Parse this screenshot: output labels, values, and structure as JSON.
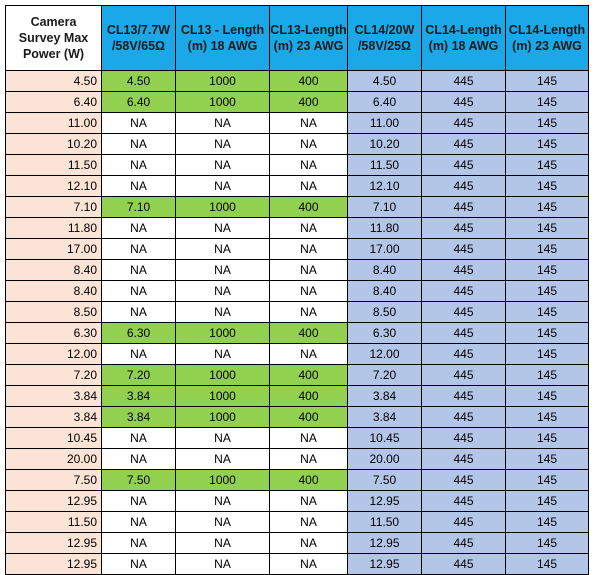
{
  "table": {
    "headers": [
      [
        "Camera",
        "Survey Max",
        "Power (W)"
      ],
      [
        "CL13/7.7W",
        "/58V/65Ω"
      ],
      [
        "CL13 - Length",
        "(m) 18 AWG"
      ],
      [
        "CL13-Length",
        "(m) 23 AWG"
      ],
      [
        "CL14/20W",
        "/58V/25Ω"
      ],
      [
        "CL14-Length",
        "(m) 18 AWG"
      ],
      [
        "CL14-Length",
        "(m) 23 AWG"
      ]
    ],
    "colors": {
      "header_blue": "#1aa8e8",
      "power_peach": "#fbe4d5",
      "highlight_green": "#92d050",
      "cl14_blue": "#b4c6e7"
    },
    "rows": [
      {
        "power": "4.50",
        "cl13": "4.50",
        "cl13_18": "1000",
        "cl13_23": "400",
        "green": true,
        "cl14": "4.50",
        "cl14_18": "445",
        "cl14_23": "145"
      },
      {
        "power": "6.40",
        "cl13": "6.40",
        "cl13_18": "1000",
        "cl13_23": "400",
        "green": true,
        "cl14": "6.40",
        "cl14_18": "445",
        "cl14_23": "145"
      },
      {
        "power": "11.00",
        "cl13": "NA",
        "cl13_18": "NA",
        "cl13_23": "NA",
        "green": false,
        "cl14": "11.00",
        "cl14_18": "445",
        "cl14_23": "145"
      },
      {
        "power": "10.20",
        "cl13": "NA",
        "cl13_18": "NA",
        "cl13_23": "NA",
        "green": false,
        "cl14": "10.20",
        "cl14_18": "445",
        "cl14_23": "145"
      },
      {
        "power": "11.50",
        "cl13": "NA",
        "cl13_18": "NA",
        "cl13_23": "NA",
        "green": false,
        "cl14": "11.50",
        "cl14_18": "445",
        "cl14_23": "145"
      },
      {
        "power": "12.10",
        "cl13": "NA",
        "cl13_18": "NA",
        "cl13_23": "NA",
        "green": false,
        "cl14": "12.10",
        "cl14_18": "445",
        "cl14_23": "145"
      },
      {
        "power": "7.10",
        "cl13": "7.10",
        "cl13_18": "1000",
        "cl13_23": "400",
        "green": true,
        "cl14": "7.10",
        "cl14_18": "445",
        "cl14_23": "145"
      },
      {
        "power": "11.80",
        "cl13": "NA",
        "cl13_18": "NA",
        "cl13_23": "NA",
        "green": false,
        "cl14": "11.80",
        "cl14_18": "445",
        "cl14_23": "145"
      },
      {
        "power": "17.00",
        "cl13": "NA",
        "cl13_18": "NA",
        "cl13_23": "NA",
        "green": false,
        "cl14": "17.00",
        "cl14_18": "445",
        "cl14_23": "145"
      },
      {
        "power": "8.40",
        "cl13": "NA",
        "cl13_18": "NA",
        "cl13_23": "NA",
        "green": false,
        "cl14": "8.40",
        "cl14_18": "445",
        "cl14_23": "145"
      },
      {
        "power": "8.40",
        "cl13": "NA",
        "cl13_18": "NA",
        "cl13_23": "NA",
        "green": false,
        "cl14": "8.40",
        "cl14_18": "445",
        "cl14_23": "145"
      },
      {
        "power": "8.50",
        "cl13": "NA",
        "cl13_18": "NA",
        "cl13_23": "NA",
        "green": false,
        "cl14": "8.50",
        "cl14_18": "445",
        "cl14_23": "145"
      },
      {
        "power": "6.30",
        "cl13": "6.30",
        "cl13_18": "1000",
        "cl13_23": "400",
        "green": true,
        "cl14": "6.30",
        "cl14_18": "445",
        "cl14_23": "145"
      },
      {
        "power": "12.00",
        "cl13": "NA",
        "cl13_18": "NA",
        "cl13_23": "NA",
        "green": false,
        "cl14": "12.00",
        "cl14_18": "445",
        "cl14_23": "145"
      },
      {
        "power": "7.20",
        "cl13": "7.20",
        "cl13_18": "1000",
        "cl13_23": "400",
        "green": true,
        "cl14": "7.20",
        "cl14_18": "445",
        "cl14_23": "145"
      },
      {
        "power": "3.84",
        "cl13": "3.84",
        "cl13_18": "1000",
        "cl13_23": "400",
        "green": true,
        "cl14": "3.84",
        "cl14_18": "445",
        "cl14_23": "145"
      },
      {
        "power": "3.84",
        "cl13": "3.84",
        "cl13_18": "1000",
        "cl13_23": "400",
        "green": true,
        "cl14": "3.84",
        "cl14_18": "445",
        "cl14_23": "145"
      },
      {
        "power": "10.45",
        "cl13": "NA",
        "cl13_18": "NA",
        "cl13_23": "NA",
        "green": false,
        "cl14": "10.45",
        "cl14_18": "445",
        "cl14_23": "145"
      },
      {
        "power": "20.00",
        "cl13": "NA",
        "cl13_18": "NA",
        "cl13_23": "NA",
        "green": false,
        "cl14": "20.00",
        "cl14_18": "445",
        "cl14_23": "145"
      },
      {
        "power": "7.50",
        "cl13": "7.50",
        "cl13_18": "1000",
        "cl13_23": "400",
        "green": true,
        "cl14": "7.50",
        "cl14_18": "445",
        "cl14_23": "145"
      },
      {
        "power": "12.95",
        "cl13": "NA",
        "cl13_18": "NA",
        "cl13_23": "NA",
        "green": false,
        "cl14": "12.95",
        "cl14_18": "445",
        "cl14_23": "145"
      },
      {
        "power": "11.50",
        "cl13": "NA",
        "cl13_18": "NA",
        "cl13_23": "NA",
        "green": false,
        "cl14": "11.50",
        "cl14_18": "445",
        "cl14_23": "145"
      },
      {
        "power": "12.95",
        "cl13": "NA",
        "cl13_18": "NA",
        "cl13_23": "NA",
        "green": false,
        "cl14": "12.95",
        "cl14_18": "445",
        "cl14_23": "145"
      },
      {
        "power": "12.95",
        "cl13": "NA",
        "cl13_18": "NA",
        "cl13_23": "NA",
        "green": false,
        "cl14": "12.95",
        "cl14_18": "445",
        "cl14_23": "145"
      }
    ]
  }
}
